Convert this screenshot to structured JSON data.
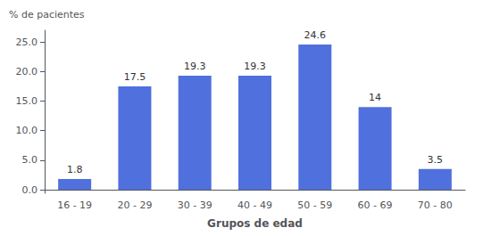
{
  "chart_data": {
    "type": "bar",
    "categories": [
      "16 - 19",
      "20 - 29",
      "30 - 39",
      "40 - 49",
      "50 - 59",
      "60 - 69",
      "70 - 80"
    ],
    "values": [
      1.8,
      17.5,
      19.3,
      19.3,
      24.6,
      14.0,
      3.5
    ],
    "xlabel": "Grupos de edad",
    "ylabel": "% de pacientes",
    "ylim": [
      -0.6,
      27.0
    ],
    "yticks": [
      {
        "value": 0,
        "label": "0.0"
      },
      {
        "value": 5,
        "label": "5.0"
      },
      {
        "value": 10,
        "label": "10.0"
      },
      {
        "value": 15,
        "label": "15.0"
      },
      {
        "value": 20,
        "label": "20.0"
      },
      {
        "value": 25,
        "label": "25.0"
      }
    ],
    "grid": false,
    "data_labels": true
  }
}
